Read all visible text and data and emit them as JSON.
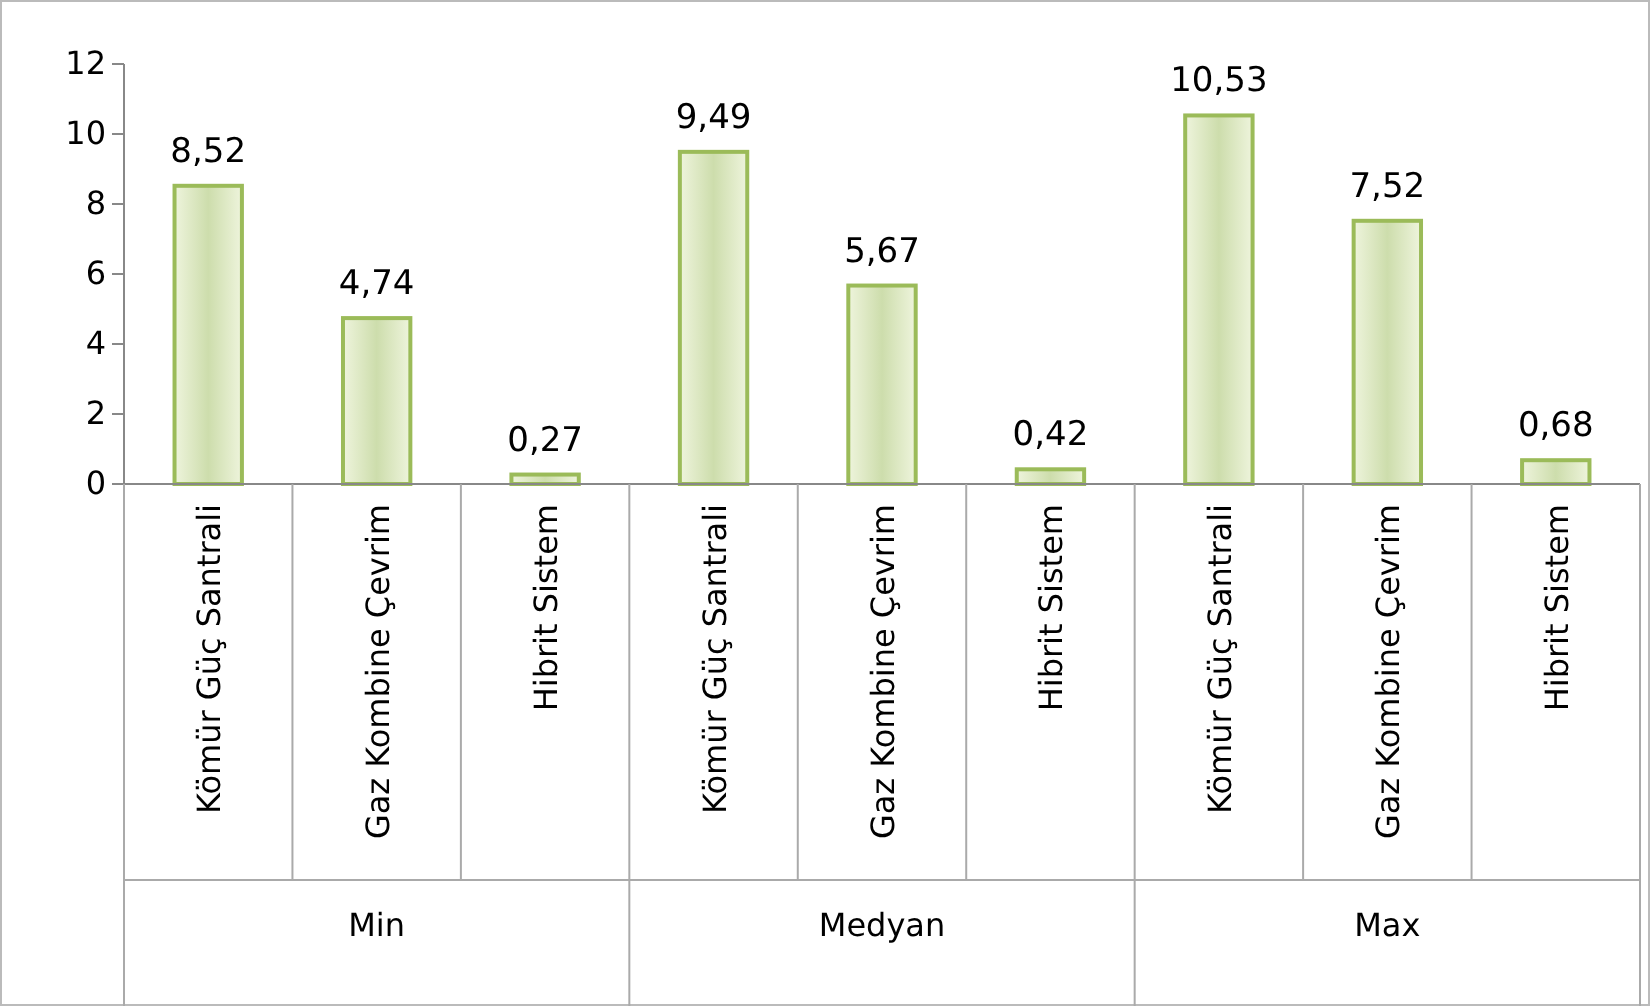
{
  "chart_data": {
    "type": "bar",
    "categories": [
      "Kömür Güç Santrali",
      "Gaz Kombine Çevrim",
      "Hibrit Sistem",
      "Kömür Güç Santrali",
      "Gaz Kombine Çevrim",
      "Hibrit Sistem",
      "Kömür Güç Santrali",
      "Gaz Kombine Çevrim",
      "Hibrit Sistem"
    ],
    "values": [
      8.52,
      4.74,
      0.27,
      9.49,
      5.67,
      0.42,
      10.53,
      7.52,
      0.68
    ],
    "value_labels": [
      "8,52",
      "4,74",
      "0,27",
      "9,49",
      "5,67",
      "0,42",
      "10,53",
      "7,52",
      "0,68"
    ],
    "color": "#9bbb59",
    "annotations": [
      "Min",
      "Medyan",
      "Max"
    ],
    "ylim": [
      0,
      12
    ],
    "yticks": [
      0,
      2,
      4,
      6,
      8,
      10,
      12
    ]
  }
}
